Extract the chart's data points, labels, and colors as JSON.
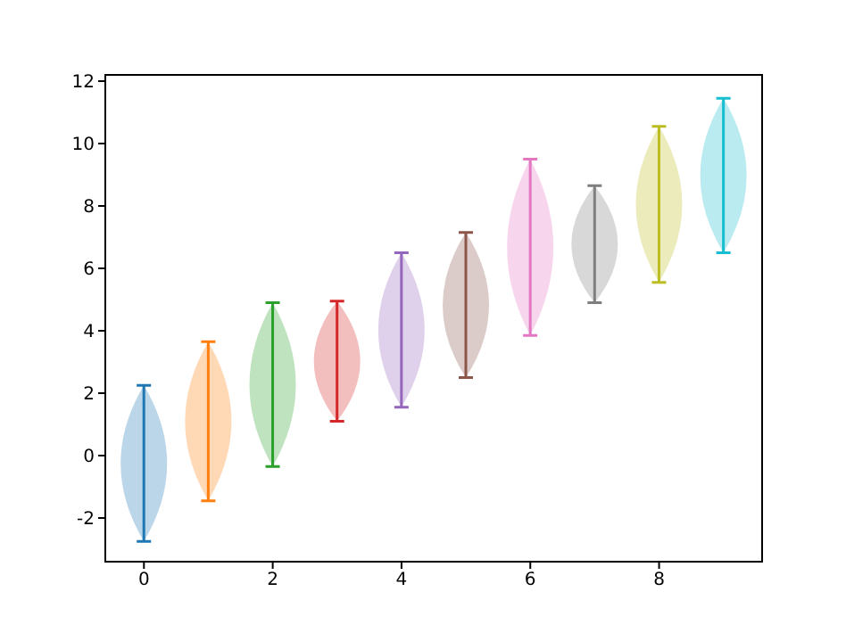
{
  "chart_data": {
    "type": "bar",
    "x": [
      0,
      1,
      2,
      3,
      4,
      5,
      6,
      7,
      8,
      9
    ],
    "base": [
      -2.75,
      -1.45,
      -0.35,
      1.1,
      1.55,
      2.5,
      3.85,
      4.9,
      5.55,
      6.5
    ],
    "values": [
      5.0,
      5.1,
      5.25,
      3.85,
      4.95,
      4.65,
      5.65,
      3.75,
      5.0,
      4.95
    ],
    "colors": [
      "#1f77b4",
      "#ff7f0e",
      "#2ca02c",
      "#d62728",
      "#9467bd",
      "#8c564b",
      "#e377c2",
      "#7f7f7f",
      "#bcbd22",
      "#17becf"
    ],
    "xlim": [
      -0.6,
      9.6
    ],
    "xticks": [
      0,
      2,
      4,
      6,
      8
    ],
    "ylim": [
      -3.4,
      12.2
    ],
    "yticks": [
      -2,
      0,
      2,
      4,
      6,
      8,
      10,
      12
    ],
    "grid": false,
    "legend": false
  }
}
